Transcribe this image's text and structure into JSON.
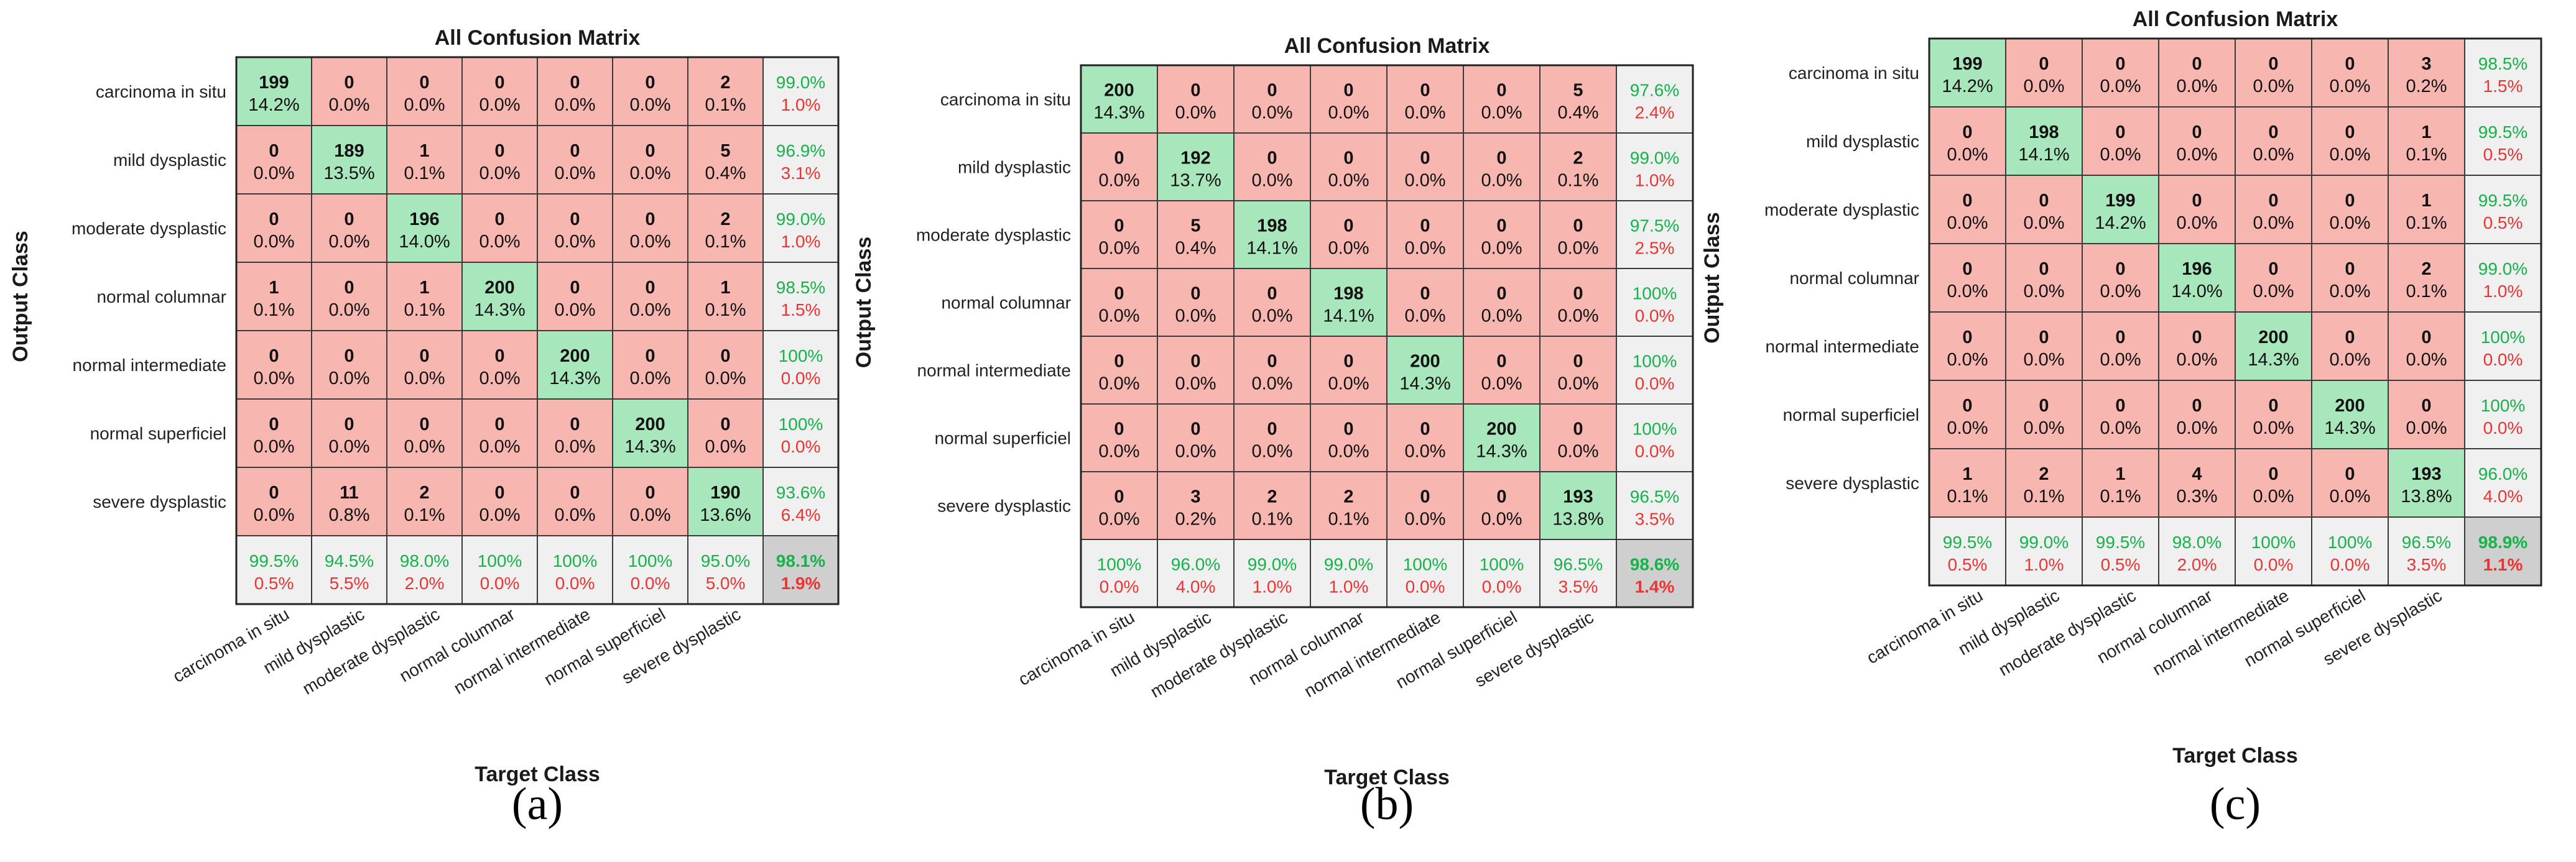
{
  "colors": {
    "diag": "#a8e6bc",
    "offdiag": "#f7b6b0",
    "summary": "#f0f0f0",
    "corner": "#cfcfcf",
    "good": "#15b34a",
    "bad": "#ee3333"
  },
  "chart_data": [
    {
      "type": "heatmap",
      "panel_label": "(a)",
      "title": "All Confusion Matrix",
      "xlabel": "Target Class",
      "ylabel": "Output Class",
      "classes": [
        "carcinoma in situ",
        "mild dysplastic",
        "moderate dysplastic",
        "normal columnar",
        "normal intermediate",
        "normal superficiel",
        "severe dysplastic"
      ],
      "counts": [
        [
          199,
          0,
          0,
          0,
          0,
          0,
          2
        ],
        [
          0,
          189,
          1,
          0,
          0,
          0,
          5
        ],
        [
          0,
          0,
          196,
          0,
          0,
          0,
          2
        ],
        [
          1,
          0,
          1,
          200,
          0,
          0,
          1
        ],
        [
          0,
          0,
          0,
          0,
          200,
          0,
          0
        ],
        [
          0,
          0,
          0,
          0,
          0,
          200,
          0
        ],
        [
          0,
          11,
          2,
          0,
          0,
          0,
          190
        ]
      ],
      "percents": [
        [
          "14.2%",
          "0.0%",
          "0.0%",
          "0.0%",
          "0.0%",
          "0.0%",
          "0.1%"
        ],
        [
          "0.0%",
          "13.5%",
          "0.1%",
          "0.0%",
          "0.0%",
          "0.0%",
          "0.4%"
        ],
        [
          "0.0%",
          "0.0%",
          "14.0%",
          "0.0%",
          "0.0%",
          "0.0%",
          "0.1%"
        ],
        [
          "0.1%",
          "0.0%",
          "0.1%",
          "14.3%",
          "0.0%",
          "0.0%",
          "0.1%"
        ],
        [
          "0.0%",
          "0.0%",
          "0.0%",
          "0.0%",
          "14.3%",
          "0.0%",
          "0.0%"
        ],
        [
          "0.0%",
          "0.0%",
          "0.0%",
          "0.0%",
          "0.0%",
          "14.3%",
          "0.0%"
        ],
        [
          "0.0%",
          "0.8%",
          "0.1%",
          "0.0%",
          "0.0%",
          "0.0%",
          "13.6%"
        ]
      ],
      "row_summary": [
        [
          "99.0%",
          "1.0%"
        ],
        [
          "96.9%",
          "3.1%"
        ],
        [
          "99.0%",
          "1.0%"
        ],
        [
          "98.5%",
          "1.5%"
        ],
        [
          "100%",
          "0.0%"
        ],
        [
          "100%",
          "0.0%"
        ],
        [
          "93.6%",
          "6.4%"
        ]
      ],
      "col_summary": [
        [
          "99.5%",
          "0.5%"
        ],
        [
          "94.5%",
          "5.5%"
        ],
        [
          "98.0%",
          "2.0%"
        ],
        [
          "100%",
          "0.0%"
        ],
        [
          "100%",
          "0.0%"
        ],
        [
          "100%",
          "0.0%"
        ],
        [
          "95.0%",
          "5.0%"
        ]
      ],
      "overall": [
        "98.1%",
        "1.9%"
      ]
    },
    {
      "type": "heatmap",
      "panel_label": "(b)",
      "title": "All Confusion Matrix",
      "xlabel": "Target Class",
      "ylabel": "Output Class",
      "classes": [
        "carcinoma in situ",
        "mild dysplastic",
        "moderate dysplastic",
        "normal columnar",
        "normal intermediate",
        "normal superficiel",
        "severe dysplastic"
      ],
      "counts": [
        [
          200,
          0,
          0,
          0,
          0,
          0,
          5
        ],
        [
          0,
          192,
          0,
          0,
          0,
          0,
          2
        ],
        [
          0,
          5,
          198,
          0,
          0,
          0,
          0
        ],
        [
          0,
          0,
          0,
          198,
          0,
          0,
          0
        ],
        [
          0,
          0,
          0,
          0,
          200,
          0,
          0
        ],
        [
          0,
          0,
          0,
          0,
          0,
          200,
          0
        ],
        [
          0,
          3,
          2,
          2,
          0,
          0,
          193
        ]
      ],
      "percents": [
        [
          "14.3%",
          "0.0%",
          "0.0%",
          "0.0%",
          "0.0%",
          "0.0%",
          "0.4%"
        ],
        [
          "0.0%",
          "13.7%",
          "0.0%",
          "0.0%",
          "0.0%",
          "0.0%",
          "0.1%"
        ],
        [
          "0.0%",
          "0.4%",
          "14.1%",
          "0.0%",
          "0.0%",
          "0.0%",
          "0.0%"
        ],
        [
          "0.0%",
          "0.0%",
          "0.0%",
          "14.1%",
          "0.0%",
          "0.0%",
          "0.0%"
        ],
        [
          "0.0%",
          "0.0%",
          "0.0%",
          "0.0%",
          "14.3%",
          "0.0%",
          "0.0%"
        ],
        [
          "0.0%",
          "0.0%",
          "0.0%",
          "0.0%",
          "0.0%",
          "14.3%",
          "0.0%"
        ],
        [
          "0.0%",
          "0.2%",
          "0.1%",
          "0.1%",
          "0.0%",
          "0.0%",
          "13.8%"
        ]
      ],
      "row_summary": [
        [
          "97.6%",
          "2.4%"
        ],
        [
          "99.0%",
          "1.0%"
        ],
        [
          "97.5%",
          "2.5%"
        ],
        [
          "100%",
          "0.0%"
        ],
        [
          "100%",
          "0.0%"
        ],
        [
          "100%",
          "0.0%"
        ],
        [
          "96.5%",
          "3.5%"
        ]
      ],
      "col_summary": [
        [
          "100%",
          "0.0%"
        ],
        [
          "96.0%",
          "4.0%"
        ],
        [
          "99.0%",
          "1.0%"
        ],
        [
          "99.0%",
          "1.0%"
        ],
        [
          "100%",
          "0.0%"
        ],
        [
          "100%",
          "0.0%"
        ],
        [
          "96.5%",
          "3.5%"
        ]
      ],
      "overall": [
        "98.6%",
        "1.4%"
      ]
    },
    {
      "type": "heatmap",
      "panel_label": "(c)",
      "title": "All Confusion Matrix",
      "xlabel": "Target Class",
      "ylabel": "Output Class",
      "classes": [
        "carcinoma in situ",
        "mild dysplastic",
        "moderate dysplastic",
        "normal columnar",
        "normal intermediate",
        "normal superficiel",
        "severe dysplastic"
      ],
      "counts": [
        [
          199,
          0,
          0,
          0,
          0,
          0,
          3
        ],
        [
          0,
          198,
          0,
          0,
          0,
          0,
          1
        ],
        [
          0,
          0,
          199,
          0,
          0,
          0,
          1
        ],
        [
          0,
          0,
          0,
          196,
          0,
          0,
          2
        ],
        [
          0,
          0,
          0,
          0,
          200,
          0,
          0
        ],
        [
          0,
          0,
          0,
          0,
          0,
          200,
          0
        ],
        [
          1,
          2,
          1,
          4,
          0,
          0,
          193
        ]
      ],
      "percents": [
        [
          "14.2%",
          "0.0%",
          "0.0%",
          "0.0%",
          "0.0%",
          "0.0%",
          "0.2%"
        ],
        [
          "0.0%",
          "14.1%",
          "0.0%",
          "0.0%",
          "0.0%",
          "0.0%",
          "0.1%"
        ],
        [
          "0.0%",
          "0.0%",
          "14.2%",
          "0.0%",
          "0.0%",
          "0.0%",
          "0.1%"
        ],
        [
          "0.0%",
          "0.0%",
          "0.0%",
          "14.0%",
          "0.0%",
          "0.0%",
          "0.1%"
        ],
        [
          "0.0%",
          "0.0%",
          "0.0%",
          "0.0%",
          "14.3%",
          "0.0%",
          "0.0%"
        ],
        [
          "0.0%",
          "0.0%",
          "0.0%",
          "0.0%",
          "0.0%",
          "14.3%",
          "0.0%"
        ],
        [
          "0.1%",
          "0.1%",
          "0.1%",
          "0.3%",
          "0.0%",
          "0.0%",
          "13.8%"
        ]
      ],
      "row_summary": [
        [
          "98.5%",
          "1.5%"
        ],
        [
          "99.5%",
          "0.5%"
        ],
        [
          "99.5%",
          "0.5%"
        ],
        [
          "99.0%",
          "1.0%"
        ],
        [
          "100%",
          "0.0%"
        ],
        [
          "100%",
          "0.0%"
        ],
        [
          "96.0%",
          "4.0%"
        ]
      ],
      "col_summary": [
        [
          "99.5%",
          "0.5%"
        ],
        [
          "99.0%",
          "1.0%"
        ],
        [
          "99.5%",
          "0.5%"
        ],
        [
          "98.0%",
          "2.0%"
        ],
        [
          "100%",
          "0.0%"
        ],
        [
          "100%",
          "0.0%"
        ],
        [
          "96.5%",
          "3.5%"
        ]
      ],
      "overall": [
        "98.9%",
        "1.1%"
      ]
    }
  ]
}
